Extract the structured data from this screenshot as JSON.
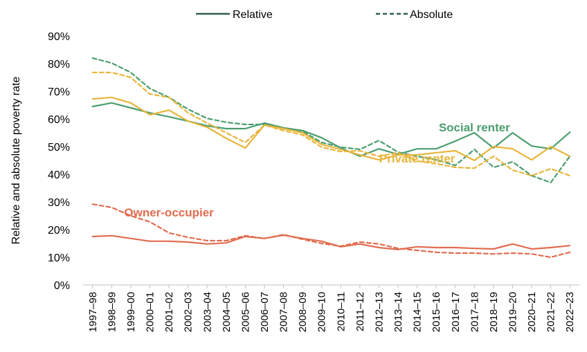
{
  "chart_data": {
    "type": "line",
    "title": "",
    "xlabel": "",
    "ylabel": "Relative and absolute poverty rate",
    "ylim": [
      0,
      90
    ],
    "yticks": [
      "0%",
      "10%",
      "20%",
      "30%",
      "40%",
      "50%",
      "60%",
      "70%",
      "80%",
      "90%"
    ],
    "grid": false,
    "legend_position": "top",
    "legend": [
      {
        "label": "Relative",
        "style": "solid"
      },
      {
        "label": "Absolute",
        "style": "dashed"
      }
    ],
    "categories": [
      "1997–98",
      "1998–99",
      "1999–00",
      "2000–01",
      "2001–02",
      "2002–03",
      "2003–04",
      "2004–05",
      "2005–06",
      "2006–07",
      "2007–08",
      "2008–09",
      "2009–10",
      "2010–11",
      "2011–12",
      "2012–13",
      "2013–14",
      "2014–15",
      "2015–16",
      "2016–17",
      "2017–18",
      "2018–19",
      "2019–20",
      "2020–21",
      "2021–22",
      "2022–23"
    ],
    "series": [
      {
        "name": "Social renter",
        "measure": "Relative",
        "color": "#4a9e6e",
        "style": "solid",
        "values": [
          64.5,
          65.8,
          64.0,
          62.2,
          60.8,
          59.2,
          57.5,
          56.5,
          56.5,
          58.5,
          56.8,
          55.8,
          53.2,
          49.5,
          46.5,
          49.2,
          47.2,
          49.2,
          49.2,
          52.0,
          55.0,
          49.5,
          55.0,
          50.2,
          49.2,
          55.2
        ]
      },
      {
        "name": "Social renter",
        "measure": "Absolute",
        "color": "#4a9e6e",
        "style": "dashed",
        "values": [
          82.0,
          80.2,
          76.8,
          71.0,
          67.8,
          63.5,
          60.2,
          58.8,
          58.0,
          58.0,
          56.5,
          55.5,
          51.5,
          49.8,
          49.0,
          52.2,
          48.0,
          46.5,
          45.2,
          43.2,
          49.0,
          42.5,
          44.5,
          39.5,
          37.0,
          46.5
        ]
      },
      {
        "name": "Private renter",
        "measure": "Relative",
        "color": "#e8b53a",
        "style": "solid",
        "values": [
          67.2,
          67.8,
          65.8,
          61.5,
          63.2,
          59.2,
          57.0,
          53.0,
          49.5,
          57.8,
          56.5,
          55.0,
          50.8,
          49.0,
          47.0,
          45.2,
          47.0,
          47.0,
          47.8,
          48.5,
          45.0,
          50.0,
          49.2,
          45.2,
          50.0,
          46.5
        ]
      },
      {
        "name": "Private renter",
        "measure": "Absolute",
        "color": "#e8b53a",
        "style": "dashed",
        "values": [
          76.8,
          76.8,
          75.0,
          69.0,
          67.8,
          62.2,
          58.5,
          55.0,
          51.5,
          57.8,
          55.8,
          54.2,
          49.8,
          48.2,
          48.5,
          46.5,
          47.8,
          44.8,
          43.8,
          42.5,
          42.2,
          46.5,
          41.5,
          39.5,
          42.0,
          39.5
        ]
      },
      {
        "name": "Owner-occupier",
        "measure": "Relative",
        "color": "#e06c4f",
        "style": "solid",
        "values": [
          17.5,
          17.8,
          16.8,
          15.8,
          15.8,
          15.5,
          14.8,
          15.2,
          17.5,
          16.8,
          18.0,
          16.8,
          15.8,
          13.8,
          14.8,
          13.5,
          12.8,
          13.8,
          13.5,
          13.5,
          13.2,
          13.0,
          14.8,
          13.0,
          13.5,
          14.2
        ]
      },
      {
        "name": "Owner-occupier",
        "measure": "Absolute",
        "color": "#e06c4f",
        "style": "dashed",
        "values": [
          29.2,
          28.0,
          25.0,
          22.8,
          18.8,
          17.2,
          16.0,
          16.0,
          17.8,
          16.8,
          18.2,
          16.5,
          15.0,
          14.0,
          15.5,
          14.8,
          13.2,
          12.5,
          11.8,
          11.5,
          11.5,
          11.2,
          11.5,
          11.2,
          10.0,
          11.8
        ]
      }
    ],
    "annotations": [
      {
        "text": "Social renter",
        "color": "#4a9e6e",
        "at_category": "2017–18",
        "at_value": 55.5
      },
      {
        "text": "Private renter",
        "color": "#e8b53a",
        "at_category": "2014–15",
        "at_value": 44.2
      },
      {
        "text": "Owner-occupier",
        "color": "#e06c4f",
        "at_category": "2001–02",
        "at_value": 24.8
      }
    ]
  }
}
